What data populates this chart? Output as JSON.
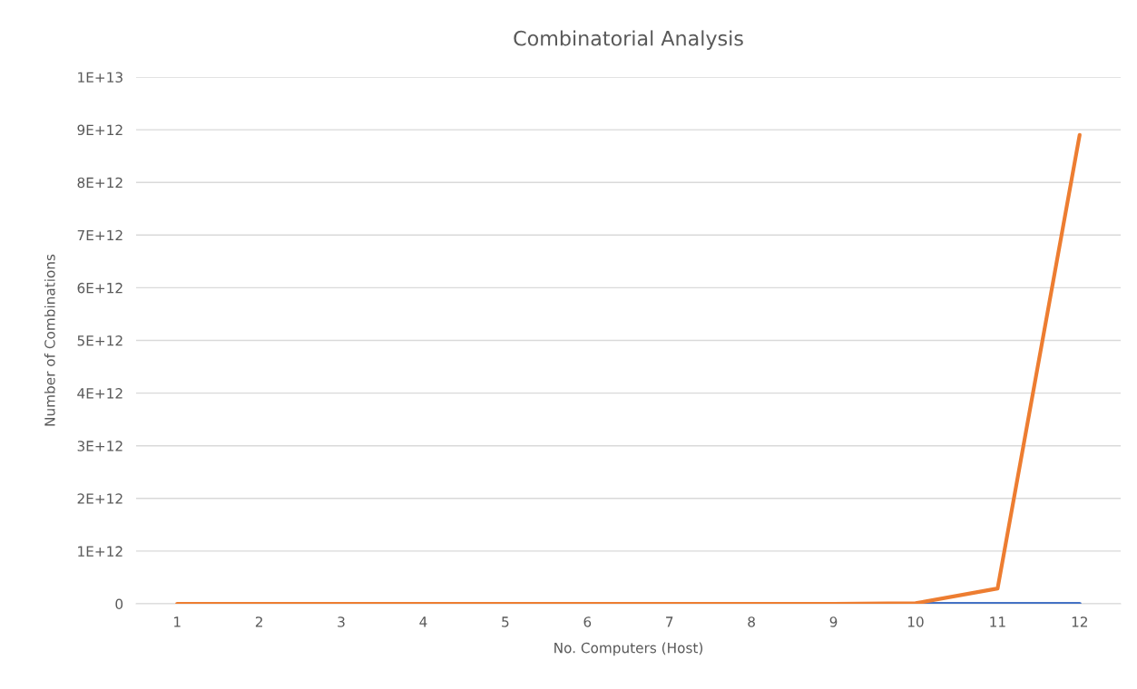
{
  "chart_data": {
    "type": "line",
    "title": "Combinatorial Analysis",
    "xlabel": "No. Computers (Host)",
    "ylabel": "Number of Combinations",
    "categories": [
      "1",
      "2",
      "3",
      "4",
      "5",
      "6",
      "7",
      "8",
      "9",
      "10",
      "11",
      "12"
    ],
    "series": [
      {
        "color": "#4472c4",
        "values": [
          null,
          null,
          null,
          null,
          null,
          null,
          null,
          null,
          null,
          0,
          0,
          0
        ]
      },
      {
        "color": "#ed7d31",
        "values": [
          0,
          0,
          0,
          0,
          0,
          0,
          0,
          0,
          0,
          10000000000,
          290000000000,
          8900000000000
        ]
      }
    ],
    "ylim": [
      0,
      10000000000000
    ],
    "yticks": [
      0,
      {
        "value": 1000000000000,
        "label": "1E+12"
      },
      {
        "value": 2000000000000,
        "label": "2E+12"
      },
      {
        "value": 3000000000000,
        "label": "3E+12"
      },
      {
        "value": 4000000000000,
        "label": "4E+12"
      },
      {
        "value": 5000000000000,
        "label": "5E+12"
      },
      {
        "value": 6000000000000,
        "label": "6E+12"
      },
      {
        "value": 7000000000000,
        "label": "7E+12"
      },
      {
        "value": 8000000000000,
        "label": "8E+12"
      },
      {
        "value": 9000000000000,
        "label": "9E+12"
      },
      {
        "value": 10000000000000,
        "label": "1E+13"
      }
    ],
    "grid": "y",
    "line_style": "solid",
    "marker": "none"
  }
}
